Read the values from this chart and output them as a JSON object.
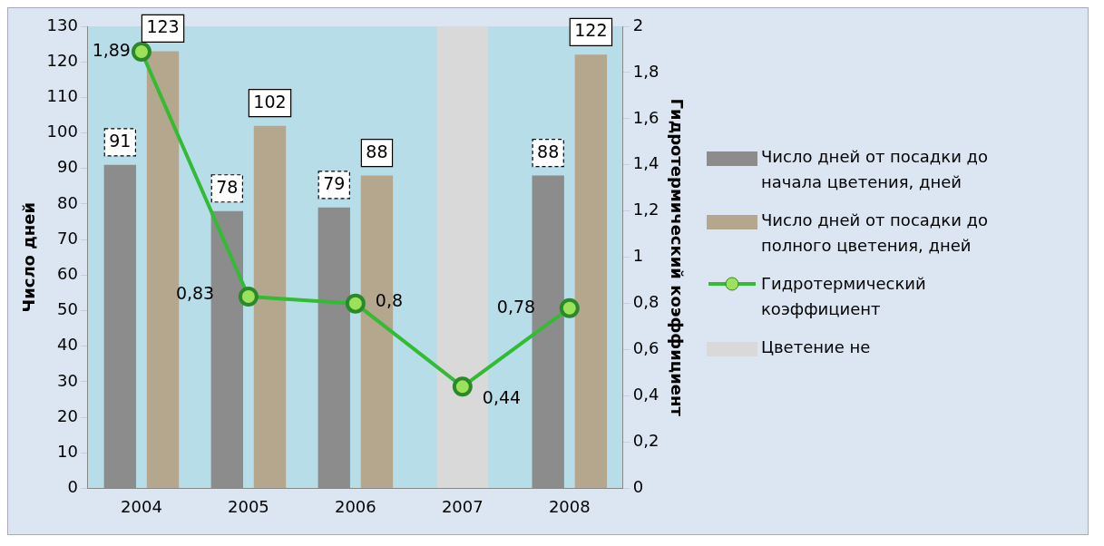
{
  "chart_data": {
    "type": "bar",
    "categories": [
      "2004",
      "2005",
      "2006",
      "2007",
      "2008"
    ],
    "ylabel": "Число дней",
    "y2label": "Гидротермический коэффициент",
    "ylim": [
      0,
      130
    ],
    "yticks": [
      0,
      10,
      20,
      30,
      40,
      50,
      60,
      70,
      80,
      90,
      100,
      110,
      120,
      130
    ],
    "y2lim": [
      0,
      2
    ],
    "y2ticks": [
      0,
      {
        "value": 0.2,
        "label": "0,2"
      },
      {
        "value": 0.4,
        "label": "0,4"
      },
      {
        "value": 0.6,
        "label": "0,6"
      },
      {
        "value": 0.8,
        "label": "0,8"
      },
      1,
      {
        "value": 1.2,
        "label": "1,2"
      },
      {
        "value": 1.4,
        "label": "1,4"
      },
      {
        "value": 1.6,
        "label": "1,6"
      },
      {
        "value": 1.8,
        "label": "1,8"
      },
      2
    ],
    "grid": false,
    "legend": "right",
    "series": [
      {
        "name": "Число дней от посадки до начала цветения, дней",
        "color": "#8c8c8c",
        "values": [
          91,
          78,
          79,
          null,
          88
        ],
        "value_labels": [
          "91",
          "78",
          "79",
          null,
          "88"
        ]
      },
      {
        "name": "Число дней от посадки до полного цветения, дней",
        "color": "#b5a68e",
        "values": [
          123,
          102,
          88,
          null,
          122
        ],
        "value_labels": [
          "123",
          "102",
          "88",
          null,
          "122"
        ]
      },
      {
        "name": "Гидротермический коэффициент",
        "type": "line",
        "axis": "y2",
        "color": "#33bb33",
        "marker": "circle",
        "values": [
          1.89,
          0.83,
          0.8,
          0.44,
          0.78
        ],
        "value_labels": [
          "1,89",
          "0,83",
          "0,8",
          "0,44",
          "0,78"
        ]
      },
      {
        "name": "Цветение не",
        "color": "#d9d9d9",
        "values": [
          null,
          null,
          null,
          130,
          null
        ]
      }
    ]
  }
}
